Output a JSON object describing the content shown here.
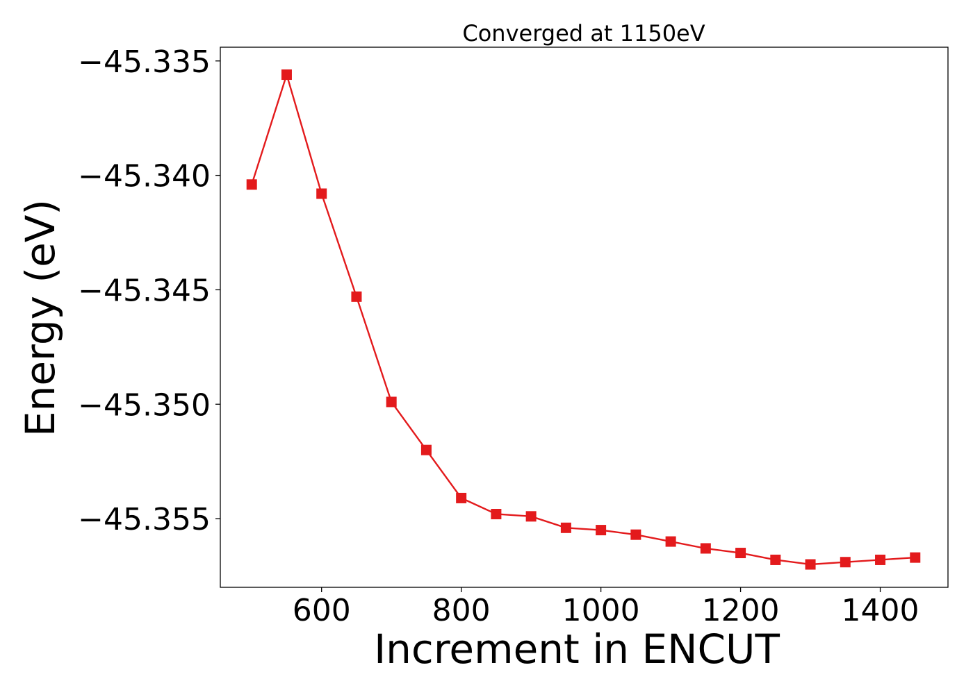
{
  "chart_data": {
    "type": "line",
    "title": "Converged at 1150eV",
    "xlabel": "Increment in ENCUT",
    "ylabel": "Energy (eV)",
    "x": [
      500,
      550,
      600,
      650,
      700,
      750,
      800,
      850,
      900,
      950,
      1000,
      1050,
      1100,
      1150,
      1200,
      1250,
      1300,
      1350,
      1400,
      1450
    ],
    "series": [
      {
        "values": [
          -45.3404,
          -45.3356,
          -45.3408,
          -45.3453,
          -45.3499,
          -45.352,
          -45.3541,
          -45.3548,
          -45.3549,
          -45.3554,
          -45.3555,
          -45.3557,
          -45.356,
          -45.3563,
          -45.3565,
          -45.3568,
          -45.357,
          -45.3569,
          -45.3568,
          -45.3567
        ],
        "color": "#e31a1c",
        "marker": "square"
      }
    ],
    "xlim": [
      455,
      1497
    ],
    "ylim": [
      -45.358,
      -45.3344
    ],
    "xticks": [
      600,
      800,
      1000,
      1200,
      1400
    ],
    "xtick_labels": [
      "600",
      "800",
      "1000",
      "1200",
      "1400"
    ],
    "yticks": [
      -45.335,
      -45.34,
      -45.345,
      -45.35,
      -45.355
    ],
    "ytick_labels": [
      "−45.335",
      "−45.340",
      "−45.345",
      "−45.350",
      "−45.355"
    ],
    "grid": false,
    "legend": "none"
  }
}
